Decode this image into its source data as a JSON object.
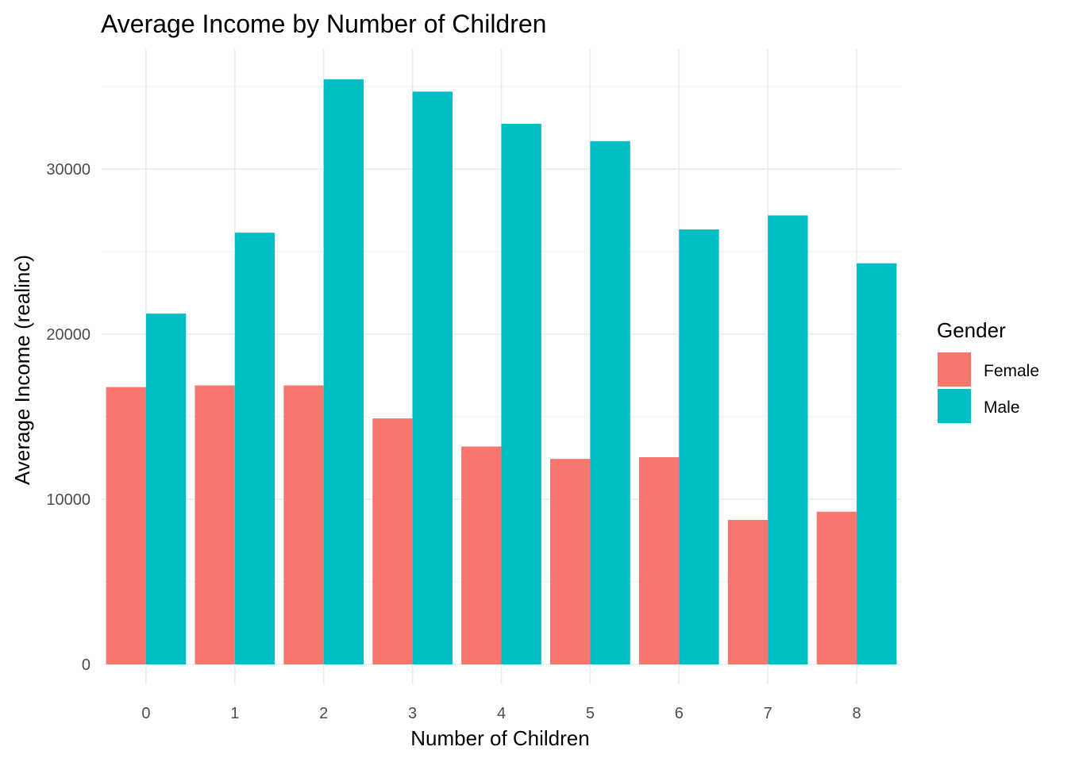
{
  "chart_data": {
    "type": "bar",
    "title": "Average Income by Number of Children",
    "xlabel": "Number of Children",
    "ylabel": "Average Income (realinc)",
    "categories": [
      "0",
      "1",
      "2",
      "3",
      "4",
      "5",
      "6",
      "7",
      "8"
    ],
    "series": [
      {
        "name": "Female",
        "color": "#F8766D",
        "values": [
          16800,
          16900,
          16900,
          14900,
          13200,
          12450,
          12550,
          8750,
          9250
        ]
      },
      {
        "name": "Male",
        "color": "#00BFC4",
        "values": [
          21250,
          26150,
          35450,
          34700,
          32750,
          31700,
          26350,
          27200,
          24300
        ]
      }
    ],
    "ylim": [
      0,
      36000
    ],
    "yticks": [
      0,
      10000,
      20000,
      30000
    ],
    "ytick_labels": [
      "0",
      "10000",
      "20000",
      "30000"
    ],
    "grid": true,
    "legend": {
      "title": "Gender",
      "placement": "right"
    }
  }
}
